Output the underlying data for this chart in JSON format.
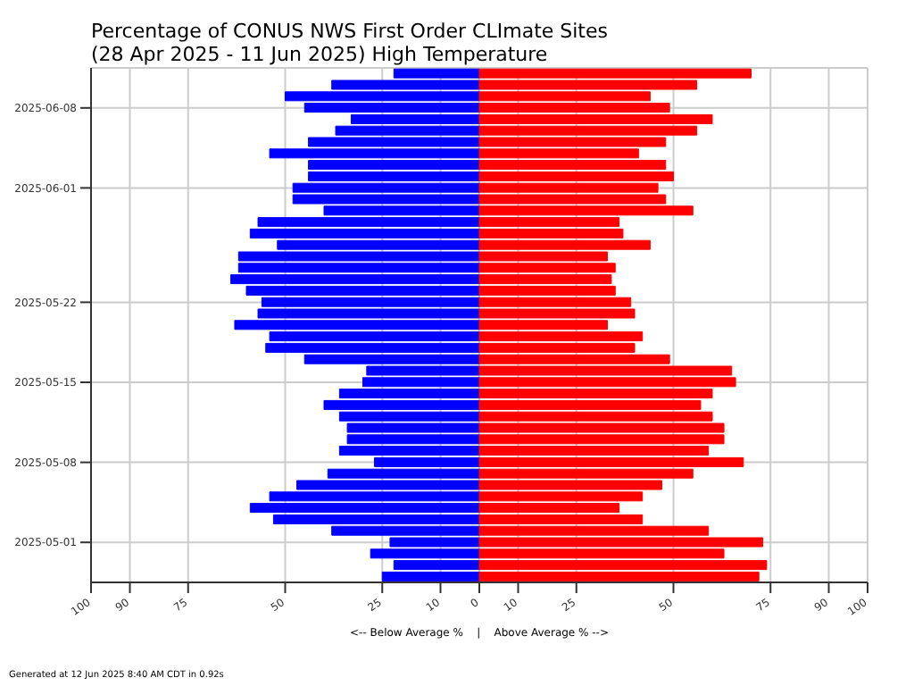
{
  "chart_data": {
    "type": "bar",
    "orientation": "horizontal",
    "title": "Percentage of CONUS NWS First Order CLImate Sites",
    "subtitle": "(28 Apr 2025 - 11 Jun 2025) High Temperature",
    "xlabel": "<-- Below Average %    |    Above Average % -->",
    "annotations": [
      "Generated at 12 Jun 2025 8:40 AM CDT in 0.92s"
    ],
    "categories": [
      null,
      null,
      null,
      "2025-06-08",
      null,
      null,
      null,
      null,
      null,
      null,
      "2025-06-01",
      null,
      null,
      null,
      null,
      null,
      null,
      null,
      null,
      null,
      "2025-05-22",
      null,
      null,
      null,
      null,
      null,
      null,
      "2025-05-15",
      null,
      null,
      null,
      null,
      null,
      null,
      "2025-05-08",
      null,
      null,
      null,
      null,
      null,
      null,
      "2025-05-01",
      null,
      null,
      null
    ],
    "series": [
      {
        "color": "#0000ff",
        "values": [
          -22,
          -38,
          -50,
          -45,
          -33,
          -37,
          -44,
          -54,
          -44,
          -44,
          -48,
          -48,
          -40,
          -57,
          -59,
          -52,
          -62,
          -62,
          -64,
          -60,
          -56,
          -57,
          -63,
          -54,
          -55,
          -45,
          -29,
          -30,
          -36,
          -40,
          -36,
          -34,
          -34,
          -36,
          -27,
          -39,
          -47,
          -54,
          -59,
          -53,
          -38,
          -23,
          -28,
          -22,
          -25
        ]
      },
      {
        "color": "#ff0000",
        "values": [
          70,
          56,
          44,
          49,
          60,
          56,
          48,
          41,
          48,
          50,
          46,
          48,
          55,
          36,
          37,
          44,
          33,
          35,
          34,
          35,
          39,
          40,
          33,
          42,
          40,
          49,
          65,
          66,
          60,
          57,
          60,
          63,
          63,
          59,
          68,
          55,
          47,
          42,
          36,
          42,
          59,
          73,
          63,
          74,
          72
        ]
      }
    ],
    "xlim": [
      -100,
      100
    ],
    "xticks": [
      {
        "value": -100,
        "label": "100"
      },
      {
        "value": -90,
        "label": "90"
      },
      {
        "value": -75,
        "label": "75"
      },
      {
        "value": -50,
        "label": "50"
      },
      {
        "value": -25,
        "label": "25"
      },
      {
        "value": -10,
        "label": "10"
      },
      0,
      10,
      25,
      50,
      75,
      90,
      100
    ],
    "stacked": true,
    "grid": true,
    "legend": false
  }
}
